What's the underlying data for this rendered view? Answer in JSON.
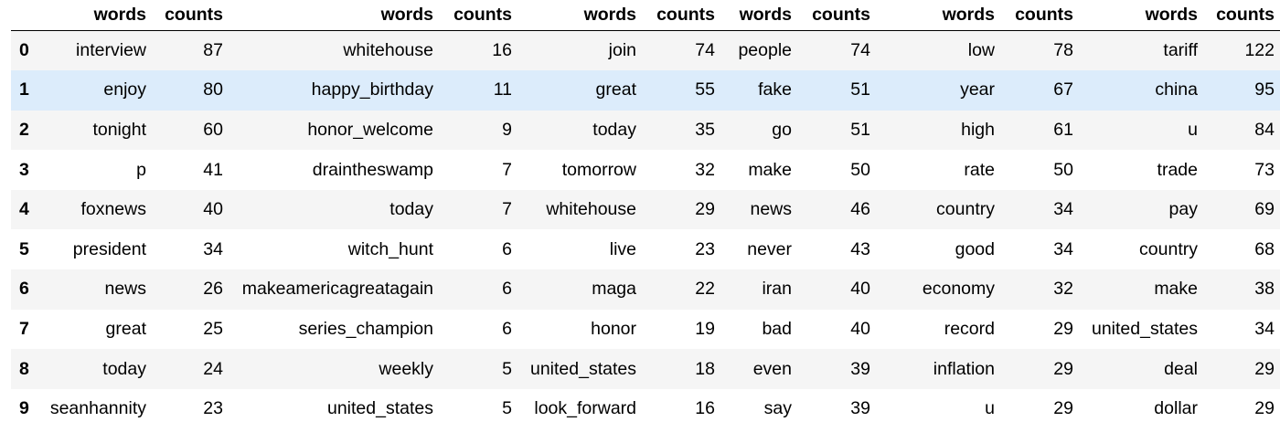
{
  "header": {
    "index_label": "",
    "columns": [
      "words",
      "counts",
      "words",
      "counts",
      "words",
      "counts",
      "words",
      "counts",
      "words",
      "counts",
      "words",
      "counts"
    ]
  },
  "rows": [
    {
      "index": "0",
      "cells": [
        "interview",
        "87",
        "whitehouse",
        "16",
        "join",
        "74",
        "people",
        "74",
        "low",
        "78",
        "tariff",
        "122"
      ]
    },
    {
      "index": "1",
      "cells": [
        "enjoy",
        "80",
        "happy_birthday",
        "11",
        "great",
        "55",
        "fake",
        "51",
        "year",
        "67",
        "china",
        "95"
      ]
    },
    {
      "index": "2",
      "cells": [
        "tonight",
        "60",
        "honor_welcome",
        "9",
        "today",
        "35",
        "go",
        "51",
        "high",
        "61",
        "u",
        "84"
      ]
    },
    {
      "index": "3",
      "cells": [
        "p",
        "41",
        "draintheswamp",
        "7",
        "tomorrow",
        "32",
        "make",
        "50",
        "rate",
        "50",
        "trade",
        "73"
      ]
    },
    {
      "index": "4",
      "cells": [
        "foxnews",
        "40",
        "today",
        "7",
        "whitehouse",
        "29",
        "news",
        "46",
        "country",
        "34",
        "pay",
        "69"
      ]
    },
    {
      "index": "5",
      "cells": [
        "president",
        "34",
        "witch_hunt",
        "6",
        "live",
        "23",
        "never",
        "43",
        "good",
        "34",
        "country",
        "68"
      ]
    },
    {
      "index": "6",
      "cells": [
        "news",
        "26",
        "makeamericagreatagain",
        "6",
        "maga",
        "22",
        "iran",
        "40",
        "economy",
        "32",
        "make",
        "38"
      ]
    },
    {
      "index": "7",
      "cells": [
        "great",
        "25",
        "series_champion",
        "6",
        "honor",
        "19",
        "bad",
        "40",
        "record",
        "29",
        "united_states",
        "34"
      ]
    },
    {
      "index": "8",
      "cells": [
        "today",
        "24",
        "weekly",
        "5",
        "united_states",
        "18",
        "even",
        "39",
        "inflation",
        "29",
        "deal",
        "29"
      ]
    },
    {
      "index": "9",
      "cells": [
        "seanhannity",
        "23",
        "united_states",
        "5",
        "look_forward",
        "16",
        "say",
        "39",
        "u",
        "29",
        "dollar",
        "29"
      ]
    }
  ],
  "hover_row": 1
}
